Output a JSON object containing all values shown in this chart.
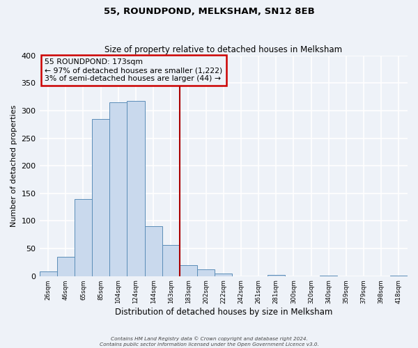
{
  "title": "55, ROUNDPOND, MELKSHAM, SN12 8EB",
  "subtitle": "Size of property relative to detached houses in Melksham",
  "xlabel": "Distribution of detached houses by size in Melksham",
  "ylabel": "Number of detached properties",
  "bin_labels": [
    "26sqm",
    "46sqm",
    "65sqm",
    "85sqm",
    "104sqm",
    "124sqm",
    "144sqm",
    "163sqm",
    "183sqm",
    "202sqm",
    "222sqm",
    "242sqm",
    "261sqm",
    "281sqm",
    "300sqm",
    "320sqm",
    "340sqm",
    "359sqm",
    "379sqm",
    "398sqm",
    "418sqm"
  ],
  "bar_values": [
    8,
    35,
    140,
    285,
    315,
    318,
    90,
    57,
    20,
    12,
    5,
    0,
    0,
    2,
    0,
    0,
    1,
    0,
    0,
    0,
    1
  ],
  "bar_color": "#c9d9ed",
  "bar_edge_color": "#5b8db8",
  "ylim": [
    0,
    400
  ],
  "yticks": [
    0,
    50,
    100,
    150,
    200,
    250,
    300,
    350,
    400
  ],
  "vline_x": 7.5,
  "vline_color": "#aa0000",
  "annotation_title": "55 ROUNDPOND: 173sqm",
  "annotation_line1": "← 97% of detached houses are smaller (1,222)",
  "annotation_line2": "3% of semi-detached houses are larger (44) →",
  "annotation_box_edgecolor": "#cc0000",
  "footer1": "Contains HM Land Registry data © Crown copyright and database right 2024.",
  "footer2": "Contains public sector information licensed under the Open Government Licence v3.0.",
  "background_color": "#eef2f8",
  "grid_color": "#ffffff"
}
